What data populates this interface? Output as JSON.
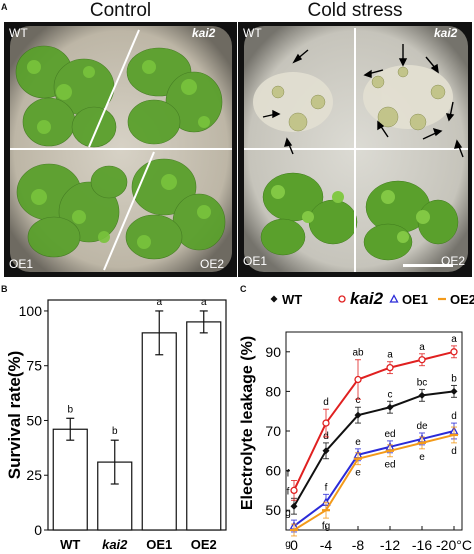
{
  "panel_a": {
    "letter": "A",
    "photos": [
      {
        "title": "Control",
        "labels": {
          "tl": "WT",
          "tr": "kai2",
          "bl": "OE1",
          "br": "OE2"
        }
      },
      {
        "title": "Cold stress",
        "labels": {
          "tl": "WT",
          "tr": "kai2",
          "bl": "OE1",
          "br": "OE2"
        }
      }
    ]
  },
  "panel_b": {
    "letter": "B"
  },
  "panel_c": {
    "letter": "C"
  },
  "chart_data": [
    {
      "type": "bar",
      "title": "",
      "xlabel": "",
      "ylabel": "Survival rate(%)",
      "ylim": [
        0,
        105
      ],
      "yticks": [
        "0",
        "25",
        "50",
        "75",
        "100"
      ],
      "categories": [
        "WT",
        "kai2",
        "OE1",
        "OE2"
      ],
      "values": [
        46,
        31,
        90,
        95
      ],
      "errors": [
        5,
        10,
        10,
        5
      ],
      "significance": [
        "b",
        "b",
        "a",
        "a"
      ]
    },
    {
      "type": "line",
      "title": "",
      "xlabel": "",
      "ylabel": "Electrolyte leakage (%)",
      "x": [
        0,
        -4,
        -8,
        -12,
        -16,
        -20
      ],
      "xtick_labels": [
        "0",
        "-4",
        "-8",
        "-12",
        "-16",
        "-20°C"
      ],
      "ylim": [
        45,
        95
      ],
      "yticks": [
        "50",
        "60",
        "70",
        "80",
        "90"
      ],
      "legend_position": "top",
      "series": [
        {
          "name": "WT",
          "color": "#111111",
          "marker": "diamond",
          "values": [
            51,
            65,
            74,
            76,
            79,
            80
          ],
          "errors": [
            2,
            2,
            2,
            1.5,
            1.5,
            1.5
          ],
          "letters": [
            "f",
            "d",
            "c",
            "c",
            "bc",
            "b"
          ]
        },
        {
          "name": "kai2",
          "color": "#e02020",
          "marker": "circle",
          "values": [
            55,
            72,
            83,
            86,
            88,
            90
          ],
          "errors": [
            2.5,
            3.5,
            5,
            1.5,
            1.5,
            1.5
          ],
          "letters": [
            "f",
            "d",
            "ab",
            "a",
            "a",
            "a"
          ]
        },
        {
          "name": "OE1",
          "color": "#2b2bd8",
          "marker": "triangle",
          "values": [
            46,
            52,
            64,
            66,
            68,
            70
          ],
          "errors": [
            1.5,
            2,
            1.5,
            1.5,
            1.5,
            2
          ],
          "letters": [
            "g",
            "f",
            "e",
            "ed",
            "de",
            "d"
          ]
        },
        {
          "name": "OE2",
          "color": "#f39a1a",
          "marker": "dash",
          "values": [
            45,
            50,
            63,
            65,
            67,
            69
          ],
          "errors": [
            1.5,
            2,
            1.5,
            1.5,
            1.5,
            2
          ],
          "letters": [
            "g",
            "fg",
            "e",
            "ed",
            "e",
            "d"
          ]
        }
      ]
    }
  ]
}
